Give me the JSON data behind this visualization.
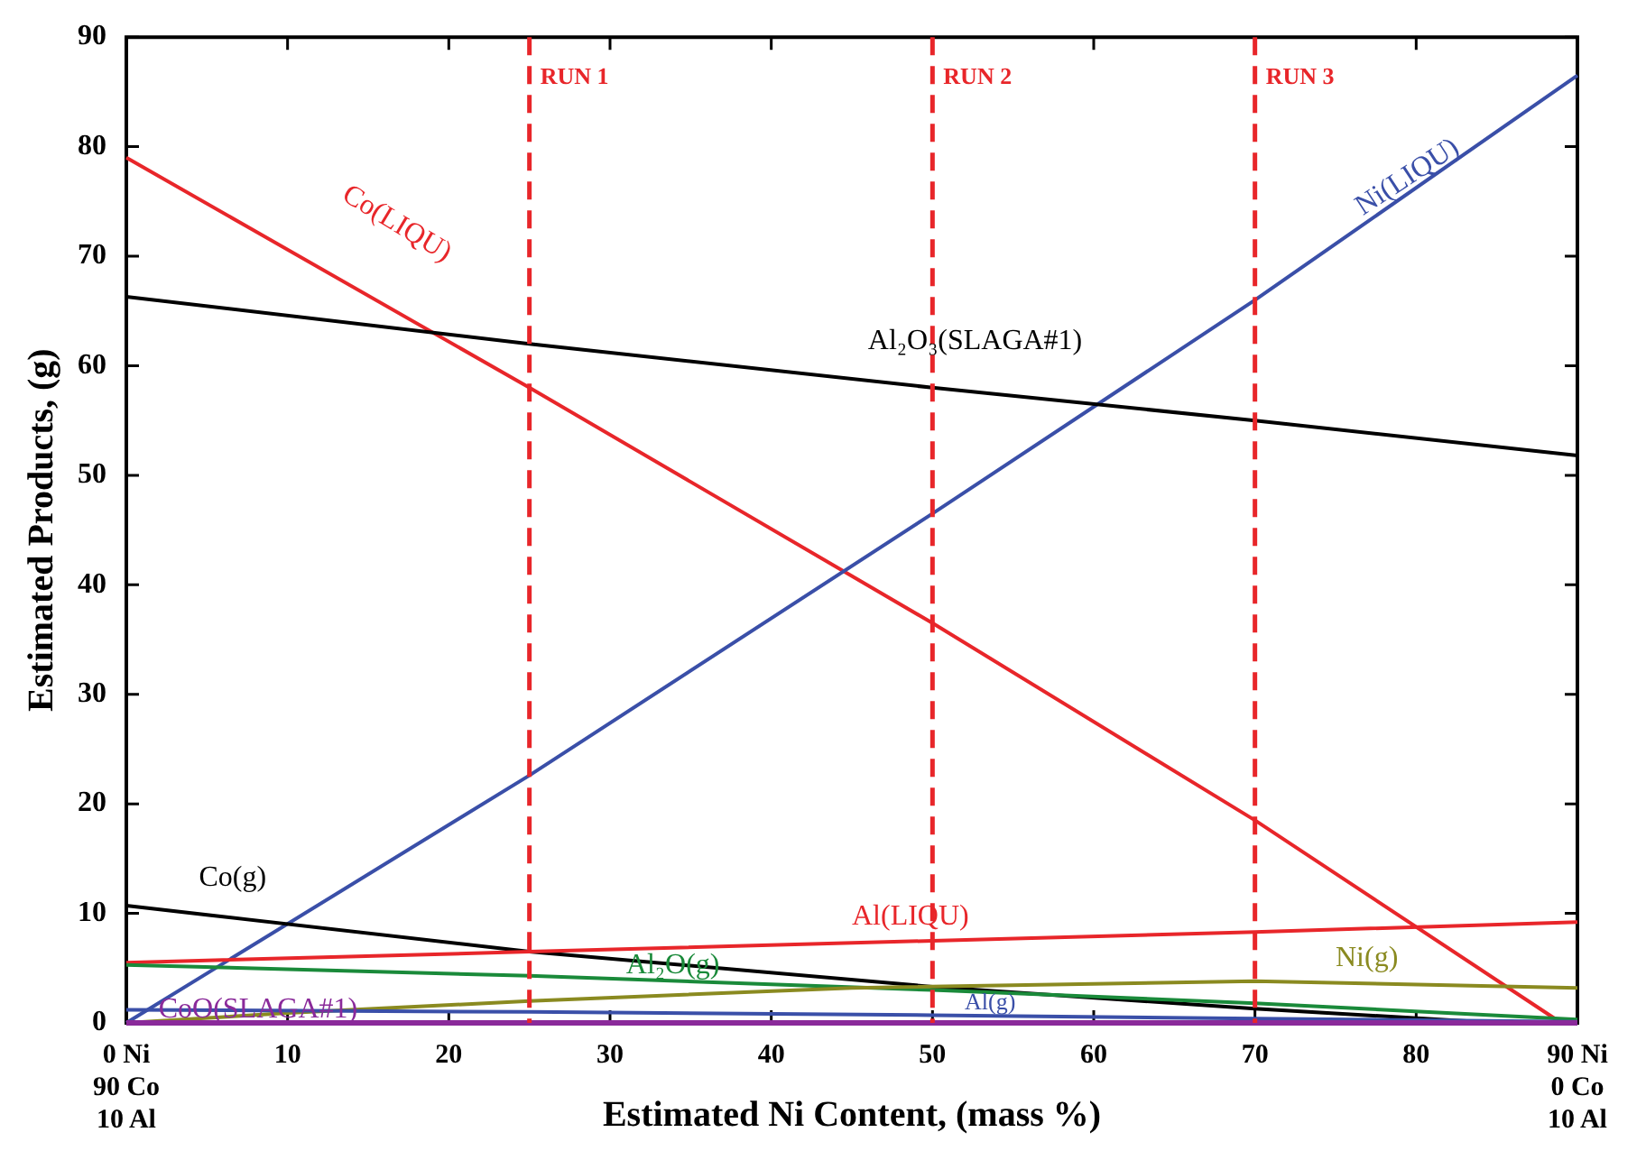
{
  "chart_data": {
    "type": "line",
    "xlabel": "Estimated Ni Content, (mass %)",
    "ylabel": "Estimated Products, (g)",
    "xlim": [
      0,
      90
    ],
    "ylim": [
      0,
      90
    ],
    "xticks": [
      {
        "value": 0,
        "label": "0 Ni\n90 Co\n10 Al"
      },
      10,
      20,
      30,
      40,
      50,
      60,
      70,
      80,
      {
        "value": 90,
        "label": "90 Ni\n0 Co\n10 Al"
      }
    ],
    "yticks": [
      0,
      10,
      20,
      30,
      40,
      50,
      60,
      70,
      80,
      90
    ],
    "grid": false,
    "legend": false,
    "marker": "none",
    "line_style": "solid",
    "series": [
      {
        "name": "Co(LIQU)",
        "color": "#e8262a",
        "x": [
          0,
          25,
          50,
          70,
          89
        ],
        "values": [
          79,
          58,
          36.5,
          18.5,
          0
        ]
      },
      {
        "name": "Ni(LIQU)",
        "color": "#3a4fa8",
        "x": [
          0,
          25,
          50,
          70,
          90
        ],
        "values": [
          0,
          22.6,
          46.5,
          66,
          86.5
        ]
      },
      {
        "name": "Al₂O₃(SLAGA#1)",
        "color": "#000000",
        "x": [
          0,
          25,
          50,
          70,
          90
        ],
        "values": [
          66.3,
          62,
          58,
          55,
          51.8
        ]
      },
      {
        "name": "Co(g)",
        "color": "#000000",
        "x": [
          0,
          25,
          50,
          70,
          85
        ],
        "values": [
          10.7,
          6.5,
          3.3,
          1.3,
          0
        ]
      },
      {
        "name": "Al(LIQU)",
        "color": "#e8262a",
        "x": [
          0,
          25,
          50,
          70,
          90
        ],
        "values": [
          5.5,
          6.5,
          7.5,
          8.3,
          9.2
        ]
      },
      {
        "name": "Al₂O(g)",
        "color": "#1a8a3a",
        "x": [
          0,
          25,
          50,
          70,
          90
        ],
        "values": [
          5.3,
          4.3,
          3,
          1.8,
          0.3
        ]
      },
      {
        "name": "Ni(g)",
        "color": "#8a8a20",
        "x": [
          0,
          10,
          25,
          45,
          70,
          90
        ],
        "values": [
          0,
          0.9,
          2,
          3.2,
          3.8,
          3.2
        ]
      },
      {
        "name": "Al(g)",
        "color": "#3a4fa8",
        "x": [
          0,
          25,
          50,
          70,
          90
        ],
        "values": [
          1.2,
          1,
          0.7,
          0.4,
          0.1
        ]
      },
      {
        "name": "CoO(SLAGA#1)",
        "color": "#8a2a9a",
        "x": [
          0,
          90
        ],
        "values": [
          0,
          0
        ]
      }
    ],
    "ref_lines": [
      {
        "axis": "x",
        "value": 25,
        "label": "RUN 1",
        "color": "#e8262a",
        "line_style": "dashed"
      },
      {
        "axis": "x",
        "value": 50,
        "label": "RUN 2",
        "color": "#e8262a",
        "line_style": "dashed"
      },
      {
        "axis": "x",
        "value": 70,
        "label": "RUN 3",
        "color": "#e8262a",
        "line_style": "dashed"
      }
    ]
  }
}
